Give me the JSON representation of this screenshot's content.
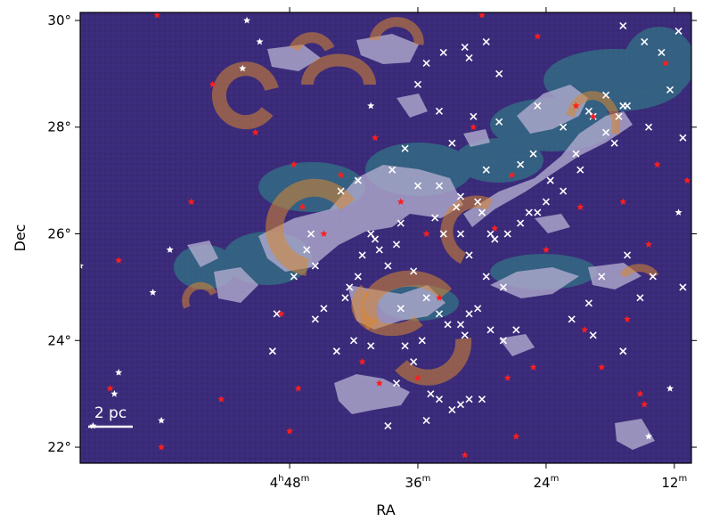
{
  "chart_data": {
    "type": "scatter",
    "title": "",
    "xlabel": "RA",
    "ylabel": "Dec",
    "xlim": [
      76.9,
      62.6
    ],
    "ylim": [
      21.7,
      30.15
    ],
    "x_ticks": [
      {
        "value": 72.0,
        "label": "4h48m"
      },
      {
        "value": 69.0,
        "label": "36m"
      },
      {
        "value": 66.0,
        "label": "24m"
      },
      {
        "value": 63.0,
        "label": "12m"
      }
    ],
    "y_ticks": [
      {
        "value": 22,
        "label": "22°"
      },
      {
        "value": 24,
        "label": "24°"
      },
      {
        "value": 26,
        "label": "26°"
      },
      {
        "value": 28,
        "label": "28°"
      },
      {
        "value": 30,
        "label": "30°"
      }
    ],
    "scale_bar": {
      "label": "2 pc"
    },
    "grid": false,
    "colors": {
      "background_map": "#3b2b7a",
      "cloud_teal": "#2f8c8a",
      "cloud_gray": "#b3aed0",
      "ring_fill": "#d8862f",
      "x_markers": "#ffffff",
      "star_red": "#ff1e1e",
      "star_white": "#ffffff"
    },
    "series": [
      {
        "marker": "x",
        "color": "#ffffff",
        "points": [
          [
            65.0,
            28.3
          ],
          [
            64.9,
            28.2
          ],
          [
            64.6,
            28.6
          ],
          [
            64.3,
            28.2
          ],
          [
            64.2,
            28.4
          ],
          [
            64.1,
            28.4
          ],
          [
            64.6,
            27.9
          ],
          [
            64.4,
            27.7
          ],
          [
            65.3,
            27.5
          ],
          [
            65.2,
            27.2
          ],
          [
            65.9,
            27.0
          ],
          [
            65.6,
            26.8
          ],
          [
            66.0,
            26.6
          ],
          [
            66.2,
            26.4
          ],
          [
            66.4,
            26.4
          ],
          [
            66.6,
            26.2
          ],
          [
            66.9,
            26.0
          ],
          [
            67.2,
            25.9
          ],
          [
            67.5,
            26.4
          ],
          [
            67.3,
            26.0
          ],
          [
            67.8,
            25.6
          ],
          [
            68.0,
            26.0
          ],
          [
            67.6,
            26.6
          ],
          [
            68.1,
            26.5
          ],
          [
            68.6,
            26.3
          ],
          [
            68.4,
            26.0
          ],
          [
            69.4,
            26.2
          ],
          [
            69.9,
            25.7
          ],
          [
            70.0,
            25.9
          ],
          [
            70.3,
            25.6
          ],
          [
            70.4,
            25.2
          ],
          [
            70.6,
            25.0
          ],
          [
            69.7,
            25.4
          ],
          [
            69.1,
            25.3
          ],
          [
            69.5,
            25.8
          ],
          [
            70.1,
            26.0
          ],
          [
            69.0,
            26.9
          ],
          [
            68.5,
            26.9
          ],
          [
            68.0,
            26.7
          ],
          [
            67.4,
            27.2
          ],
          [
            66.6,
            27.3
          ],
          [
            66.3,
            27.5
          ],
          [
            67.7,
            28.2
          ],
          [
            68.5,
            28.3
          ],
          [
            68.8,
            29.2
          ],
          [
            68.4,
            29.4
          ],
          [
            67.9,
            29.5
          ],
          [
            69.0,
            28.8
          ],
          [
            67.8,
            29.3
          ],
          [
            67.4,
            29.6
          ],
          [
            67.1,
            29.0
          ],
          [
            65.6,
            28.0
          ],
          [
            66.2,
            28.4
          ],
          [
            67.1,
            28.1
          ],
          [
            69.3,
            27.6
          ],
          [
            67.4,
            25.2
          ],
          [
            67.0,
            25.0
          ],
          [
            68.8,
            24.8
          ],
          [
            68.5,
            24.5
          ],
          [
            68.3,
            24.3
          ],
          [
            68.0,
            24.3
          ],
          [
            67.8,
            24.5
          ],
          [
            67.6,
            24.6
          ],
          [
            67.3,
            24.2
          ],
          [
            67.0,
            24.0
          ],
          [
            66.7,
            24.2
          ],
          [
            68.9,
            24.0
          ],
          [
            69.1,
            23.6
          ],
          [
            69.5,
            23.2
          ],
          [
            68.7,
            23.0
          ],
          [
            68.5,
            22.9
          ],
          [
            68.2,
            22.7
          ],
          [
            68.0,
            22.8
          ],
          [
            67.8,
            22.9
          ],
          [
            67.5,
            22.9
          ],
          [
            68.8,
            22.5
          ],
          [
            69.7,
            22.4
          ],
          [
            70.1,
            23.9
          ],
          [
            70.5,
            24.0
          ],
          [
            70.9,
            23.8
          ],
          [
            71.4,
            24.4
          ],
          [
            71.2,
            24.6
          ],
          [
            71.6,
            25.7
          ],
          [
            71.9,
            25.2
          ],
          [
            72.3,
            24.5
          ],
          [
            72.4,
            23.8
          ],
          [
            71.5,
            26.0
          ],
          [
            64.1,
            25.6
          ],
          [
            64.7,
            25.2
          ],
          [
            65.0,
            24.7
          ],
          [
            65.4,
            24.4
          ],
          [
            64.9,
            24.1
          ],
          [
            63.8,
            24.8
          ],
          [
            63.5,
            25.2
          ],
          [
            62.8,
            25.0
          ],
          [
            64.2,
            23.8
          ],
          [
            63.1,
            28.7
          ],
          [
            63.3,
            29.4
          ],
          [
            63.7,
            29.6
          ],
          [
            64.2,
            29.9
          ],
          [
            62.9,
            29.8
          ],
          [
            62.8,
            27.8
          ],
          [
            63.6,
            28.0
          ],
          [
            67.9,
            24.1
          ],
          [
            68.2,
            27.7
          ],
          [
            69.6,
            27.2
          ],
          [
            70.4,
            27.0
          ],
          [
            70.8,
            26.8
          ],
          [
            71.4,
            25.4
          ],
          [
            70.7,
            24.8
          ],
          [
            69.4,
            24.6
          ],
          [
            69.3,
            23.9
          ]
        ]
      },
      {
        "marker": "star",
        "color": "#ff1e1e",
        "points": [
          [
            75.1,
            30.1
          ],
          [
            73.8,
            28.8
          ],
          [
            74.3,
            26.6
          ],
          [
            76.0,
            25.5
          ],
          [
            72.8,
            27.9
          ],
          [
            71.9,
            27.3
          ],
          [
            71.7,
            26.5
          ],
          [
            72.2,
            24.5
          ],
          [
            71.2,
            26.0
          ],
          [
            70.8,
            27.1
          ],
          [
            70.0,
            27.8
          ],
          [
            69.4,
            26.6
          ],
          [
            68.8,
            26.0
          ],
          [
            68.5,
            24.8
          ],
          [
            69.0,
            23.3
          ],
          [
            69.9,
            23.2
          ],
          [
            70.3,
            23.6
          ],
          [
            71.8,
            23.1
          ],
          [
            73.6,
            22.9
          ],
          [
            72.0,
            22.3
          ],
          [
            75.0,
            22.0
          ],
          [
            76.2,
            23.1
          ],
          [
            67.7,
            28.0
          ],
          [
            66.8,
            27.1
          ],
          [
            67.2,
            26.1
          ],
          [
            66.0,
            25.7
          ],
          [
            65.2,
            26.5
          ],
          [
            64.2,
            26.6
          ],
          [
            63.6,
            25.8
          ],
          [
            64.1,
            24.4
          ],
          [
            65.1,
            24.2
          ],
          [
            66.3,
            23.5
          ],
          [
            66.9,
            23.3
          ],
          [
            66.7,
            22.2
          ],
          [
            67.9,
            21.85
          ],
          [
            64.7,
            23.5
          ],
          [
            63.8,
            23.0
          ],
          [
            63.7,
            22.8
          ],
          [
            62.1,
            25.0
          ],
          [
            62.2,
            28.8
          ],
          [
            61.9,
            28.1
          ],
          [
            62.7,
            27.0
          ],
          [
            63.2,
            29.2
          ],
          [
            66.2,
            29.7
          ],
          [
            67.5,
            30.1
          ],
          [
            64.9,
            28.2
          ],
          [
            65.3,
            28.4
          ],
          [
            63.4,
            27.3
          ]
        ]
      },
      {
        "marker": "star",
        "color": "#ffffff",
        "points": [
          [
            76.9,
            25.4
          ],
          [
            75.2,
            24.9
          ],
          [
            74.8,
            25.7
          ],
          [
            76.1,
            23.0
          ],
          [
            76.6,
            22.4
          ],
          [
            73.1,
            29.1
          ],
          [
            73.0,
            30.0
          ],
          [
            72.7,
            29.6
          ],
          [
            70.1,
            28.4
          ],
          [
            62.9,
            26.4
          ],
          [
            62.4,
            22.0
          ],
          [
            61.9,
            22.4
          ],
          [
            63.1,
            23.1
          ],
          [
            63.6,
            22.2
          ],
          [
            62.0,
            30.0
          ],
          [
            61.7,
            29.9
          ],
          [
            76.0,
            23.4
          ],
          [
            75.0,
            22.5
          ]
        ]
      }
    ],
    "annotations": [
      "2 pc"
    ]
  }
}
